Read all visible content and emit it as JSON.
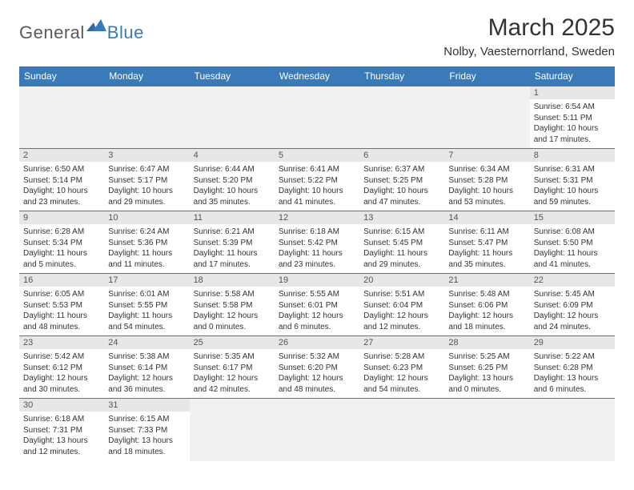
{
  "logo": {
    "text_left": "General",
    "text_right": "Blue"
  },
  "title": "March 2025",
  "location": "Nolby, Vaesternorrland, Sweden",
  "colors": {
    "header_bg": "#3a7ab8",
    "header_fg": "#ffffff",
    "daynum_bg": "#e7e7e7",
    "empty_bg": "#f1f1f1",
    "border": "#3a7ab8",
    "text": "#333333",
    "logo_gray": "#5a5a5a",
    "logo_blue": "#3a7ab8"
  },
  "day_headers": [
    "Sunday",
    "Monday",
    "Tuesday",
    "Wednesday",
    "Thursday",
    "Friday",
    "Saturday"
  ],
  "weeks": [
    [
      null,
      null,
      null,
      null,
      null,
      null,
      {
        "n": "1",
        "sunrise": "Sunrise: 6:54 AM",
        "sunset": "Sunset: 5:11 PM",
        "daylight": "Daylight: 10 hours and 17 minutes."
      }
    ],
    [
      {
        "n": "2",
        "sunrise": "Sunrise: 6:50 AM",
        "sunset": "Sunset: 5:14 PM",
        "daylight": "Daylight: 10 hours and 23 minutes."
      },
      {
        "n": "3",
        "sunrise": "Sunrise: 6:47 AM",
        "sunset": "Sunset: 5:17 PM",
        "daylight": "Daylight: 10 hours and 29 minutes."
      },
      {
        "n": "4",
        "sunrise": "Sunrise: 6:44 AM",
        "sunset": "Sunset: 5:20 PM",
        "daylight": "Daylight: 10 hours and 35 minutes."
      },
      {
        "n": "5",
        "sunrise": "Sunrise: 6:41 AM",
        "sunset": "Sunset: 5:22 PM",
        "daylight": "Daylight: 10 hours and 41 minutes."
      },
      {
        "n": "6",
        "sunrise": "Sunrise: 6:37 AM",
        "sunset": "Sunset: 5:25 PM",
        "daylight": "Daylight: 10 hours and 47 minutes."
      },
      {
        "n": "7",
        "sunrise": "Sunrise: 6:34 AM",
        "sunset": "Sunset: 5:28 PM",
        "daylight": "Daylight: 10 hours and 53 minutes."
      },
      {
        "n": "8",
        "sunrise": "Sunrise: 6:31 AM",
        "sunset": "Sunset: 5:31 PM",
        "daylight": "Daylight: 10 hours and 59 minutes."
      }
    ],
    [
      {
        "n": "9",
        "sunrise": "Sunrise: 6:28 AM",
        "sunset": "Sunset: 5:34 PM",
        "daylight": "Daylight: 11 hours and 5 minutes."
      },
      {
        "n": "10",
        "sunrise": "Sunrise: 6:24 AM",
        "sunset": "Sunset: 5:36 PM",
        "daylight": "Daylight: 11 hours and 11 minutes."
      },
      {
        "n": "11",
        "sunrise": "Sunrise: 6:21 AM",
        "sunset": "Sunset: 5:39 PM",
        "daylight": "Daylight: 11 hours and 17 minutes."
      },
      {
        "n": "12",
        "sunrise": "Sunrise: 6:18 AM",
        "sunset": "Sunset: 5:42 PM",
        "daylight": "Daylight: 11 hours and 23 minutes."
      },
      {
        "n": "13",
        "sunrise": "Sunrise: 6:15 AM",
        "sunset": "Sunset: 5:45 PM",
        "daylight": "Daylight: 11 hours and 29 minutes."
      },
      {
        "n": "14",
        "sunrise": "Sunrise: 6:11 AM",
        "sunset": "Sunset: 5:47 PM",
        "daylight": "Daylight: 11 hours and 35 minutes."
      },
      {
        "n": "15",
        "sunrise": "Sunrise: 6:08 AM",
        "sunset": "Sunset: 5:50 PM",
        "daylight": "Daylight: 11 hours and 41 minutes."
      }
    ],
    [
      {
        "n": "16",
        "sunrise": "Sunrise: 6:05 AM",
        "sunset": "Sunset: 5:53 PM",
        "daylight": "Daylight: 11 hours and 48 minutes."
      },
      {
        "n": "17",
        "sunrise": "Sunrise: 6:01 AM",
        "sunset": "Sunset: 5:55 PM",
        "daylight": "Daylight: 11 hours and 54 minutes."
      },
      {
        "n": "18",
        "sunrise": "Sunrise: 5:58 AM",
        "sunset": "Sunset: 5:58 PM",
        "daylight": "Daylight: 12 hours and 0 minutes."
      },
      {
        "n": "19",
        "sunrise": "Sunrise: 5:55 AM",
        "sunset": "Sunset: 6:01 PM",
        "daylight": "Daylight: 12 hours and 6 minutes."
      },
      {
        "n": "20",
        "sunrise": "Sunrise: 5:51 AM",
        "sunset": "Sunset: 6:04 PM",
        "daylight": "Daylight: 12 hours and 12 minutes."
      },
      {
        "n": "21",
        "sunrise": "Sunrise: 5:48 AM",
        "sunset": "Sunset: 6:06 PM",
        "daylight": "Daylight: 12 hours and 18 minutes."
      },
      {
        "n": "22",
        "sunrise": "Sunrise: 5:45 AM",
        "sunset": "Sunset: 6:09 PM",
        "daylight": "Daylight: 12 hours and 24 minutes."
      }
    ],
    [
      {
        "n": "23",
        "sunrise": "Sunrise: 5:42 AM",
        "sunset": "Sunset: 6:12 PM",
        "daylight": "Daylight: 12 hours and 30 minutes."
      },
      {
        "n": "24",
        "sunrise": "Sunrise: 5:38 AM",
        "sunset": "Sunset: 6:14 PM",
        "daylight": "Daylight: 12 hours and 36 minutes."
      },
      {
        "n": "25",
        "sunrise": "Sunrise: 5:35 AM",
        "sunset": "Sunset: 6:17 PM",
        "daylight": "Daylight: 12 hours and 42 minutes."
      },
      {
        "n": "26",
        "sunrise": "Sunrise: 5:32 AM",
        "sunset": "Sunset: 6:20 PM",
        "daylight": "Daylight: 12 hours and 48 minutes."
      },
      {
        "n": "27",
        "sunrise": "Sunrise: 5:28 AM",
        "sunset": "Sunset: 6:23 PM",
        "daylight": "Daylight: 12 hours and 54 minutes."
      },
      {
        "n": "28",
        "sunrise": "Sunrise: 5:25 AM",
        "sunset": "Sunset: 6:25 PM",
        "daylight": "Daylight: 13 hours and 0 minutes."
      },
      {
        "n": "29",
        "sunrise": "Sunrise: 5:22 AM",
        "sunset": "Sunset: 6:28 PM",
        "daylight": "Daylight: 13 hours and 6 minutes."
      }
    ],
    [
      {
        "n": "30",
        "sunrise": "Sunrise: 6:18 AM",
        "sunset": "Sunset: 7:31 PM",
        "daylight": "Daylight: 13 hours and 12 minutes."
      },
      {
        "n": "31",
        "sunrise": "Sunrise: 6:15 AM",
        "sunset": "Sunset: 7:33 PM",
        "daylight": "Daylight: 13 hours and 18 minutes."
      },
      null,
      null,
      null,
      null,
      null
    ]
  ]
}
